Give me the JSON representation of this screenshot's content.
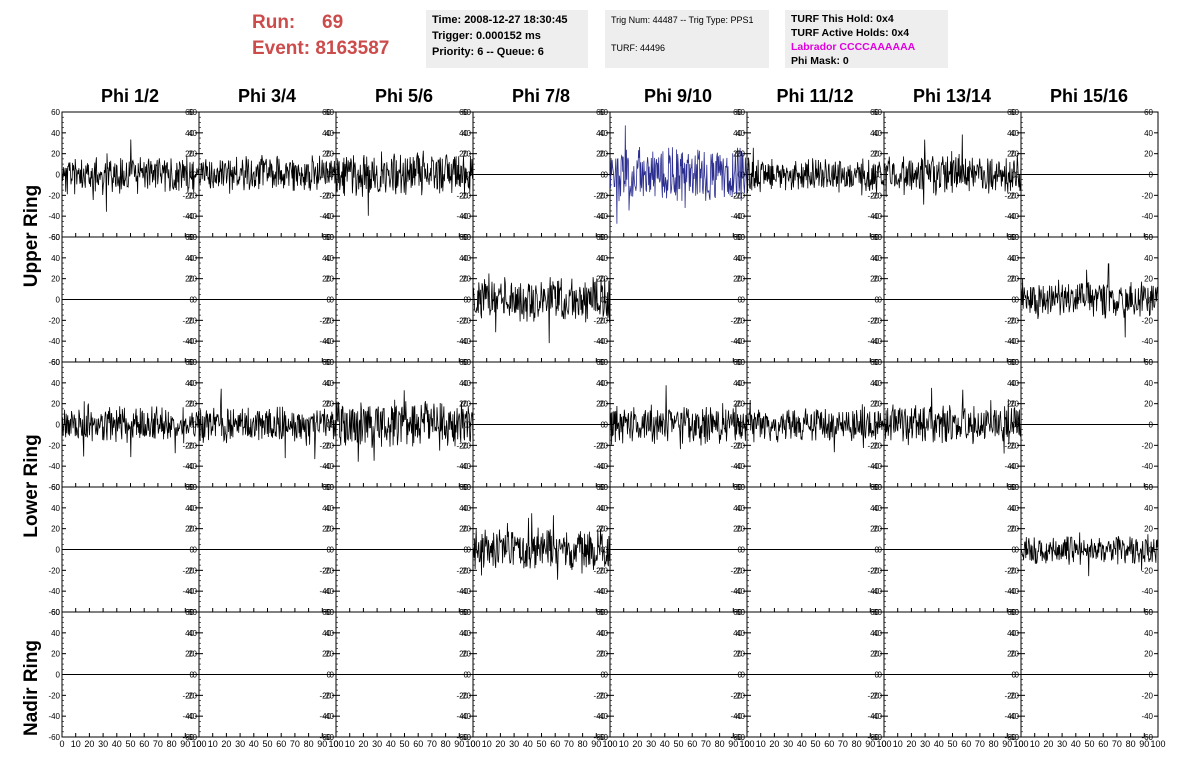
{
  "run": {
    "run_label": "Run:",
    "run_value": "69",
    "event_label": "Event:",
    "event_value": "8163587"
  },
  "time_box": {
    "time": "Time: 2008-12-27 18:30:45",
    "trigger": "Trigger: 0.000152 ms",
    "priority": "Priority: 6 -- Queue: 6"
  },
  "trig_box": {
    "trig_line": "Trig Num: 44487 -- Trig Type: PPS1",
    "turf_line": "TURF: 44496"
  },
  "turf_box": {
    "hold": "TURF This Hold: 0x4",
    "active": "TURF Active Holds: 0x4",
    "labrador": "Labrador CCCCAAAAAA",
    "phi_mask": "Phi Mask: 0"
  },
  "phi_titles": [
    "Phi 1/2",
    "Phi 3/4",
    "Phi 5/6",
    "Phi 7/8",
    "Phi 9/10",
    "Phi 11/12",
    "Phi 13/14",
    "Phi 15/16"
  ],
  "ring_labels": [
    "Upper Ring",
    "Lower Ring",
    "Nadir Ring"
  ],
  "chart_data": {
    "type": "line",
    "description_of_grid": "5 rows x 8 columns of waveform panels",
    "xlim": [
      0,
      100
    ],
    "ylim": [
      -60,
      60
    ],
    "y_ticks": [
      -60,
      -40,
      -20,
      0,
      20,
      40,
      60
    ],
    "x_ticks": [
      0,
      10,
      20,
      30,
      40,
      50,
      60,
      70,
      80,
      90,
      100
    ],
    "colors": {
      "default_trace": "#000000",
      "triggered_trace": "#2b2e8f"
    },
    "panels": [
      {
        "row": 0,
        "col": 0,
        "kind": "noise",
        "amp": 16,
        "seed": 11
      },
      {
        "row": 0,
        "col": 1,
        "kind": "noise",
        "amp": 15,
        "seed": 12
      },
      {
        "row": 0,
        "col": 2,
        "kind": "noise",
        "amp": 18,
        "seed": 13
      },
      {
        "row": 0,
        "col": 3,
        "kind": "flat"
      },
      {
        "row": 0,
        "col": 4,
        "kind": "noise",
        "amp": 22,
        "seed": 14,
        "color": "#2b2e8f"
      },
      {
        "row": 0,
        "col": 5,
        "kind": "noise",
        "amp": 14,
        "seed": 15
      },
      {
        "row": 0,
        "col": 6,
        "kind": "noise",
        "amp": 16,
        "seed": 16
      },
      {
        "row": 0,
        "col": 7,
        "kind": "flat"
      },
      {
        "row": 1,
        "col": 0,
        "kind": "flat"
      },
      {
        "row": 1,
        "col": 1,
        "kind": "flat"
      },
      {
        "row": 1,
        "col": 2,
        "kind": "flat"
      },
      {
        "row": 1,
        "col": 3,
        "kind": "noise",
        "amp": 18,
        "seed": 17
      },
      {
        "row": 1,
        "col": 4,
        "kind": "flat"
      },
      {
        "row": 1,
        "col": 5,
        "kind": "flat"
      },
      {
        "row": 1,
        "col": 6,
        "kind": "flat"
      },
      {
        "row": 1,
        "col": 7,
        "kind": "noise",
        "amp": 15,
        "seed": 18
      },
      {
        "row": 2,
        "col": 0,
        "kind": "noise",
        "amp": 15,
        "seed": 19
      },
      {
        "row": 2,
        "col": 1,
        "kind": "noise",
        "amp": 14,
        "seed": 20
      },
      {
        "row": 2,
        "col": 2,
        "kind": "noise",
        "amp": 20,
        "seed": 21
      },
      {
        "row": 2,
        "col": 3,
        "kind": "flat"
      },
      {
        "row": 2,
        "col": 4,
        "kind": "noise",
        "amp": 16,
        "seed": 22
      },
      {
        "row": 2,
        "col": 5,
        "kind": "noise",
        "amp": 14,
        "seed": 23
      },
      {
        "row": 2,
        "col": 6,
        "kind": "noise",
        "amp": 16,
        "seed": 24
      },
      {
        "row": 2,
        "col": 7,
        "kind": "flat"
      },
      {
        "row": 3,
        "col": 0,
        "kind": "flat"
      },
      {
        "row": 3,
        "col": 1,
        "kind": "flat"
      },
      {
        "row": 3,
        "col": 2,
        "kind": "flat"
      },
      {
        "row": 3,
        "col": 3,
        "kind": "noise",
        "amp": 17,
        "seed": 25
      },
      {
        "row": 3,
        "col": 4,
        "kind": "flat"
      },
      {
        "row": 3,
        "col": 5,
        "kind": "flat"
      },
      {
        "row": 3,
        "col": 6,
        "kind": "flat"
      },
      {
        "row": 3,
        "col": 7,
        "kind": "noise",
        "amp": 12,
        "seed": 26
      },
      {
        "row": 4,
        "col": 0,
        "kind": "flat"
      },
      {
        "row": 4,
        "col": 1,
        "kind": "flat"
      },
      {
        "row": 4,
        "col": 2,
        "kind": "flat"
      },
      {
        "row": 4,
        "col": 3,
        "kind": "flat"
      },
      {
        "row": 4,
        "col": 4,
        "kind": "flat"
      },
      {
        "row": 4,
        "col": 5,
        "kind": "flat"
      },
      {
        "row": 4,
        "col": 6,
        "kind": "flat"
      },
      {
        "row": 4,
        "col": 7,
        "kind": "flat"
      }
    ]
  }
}
